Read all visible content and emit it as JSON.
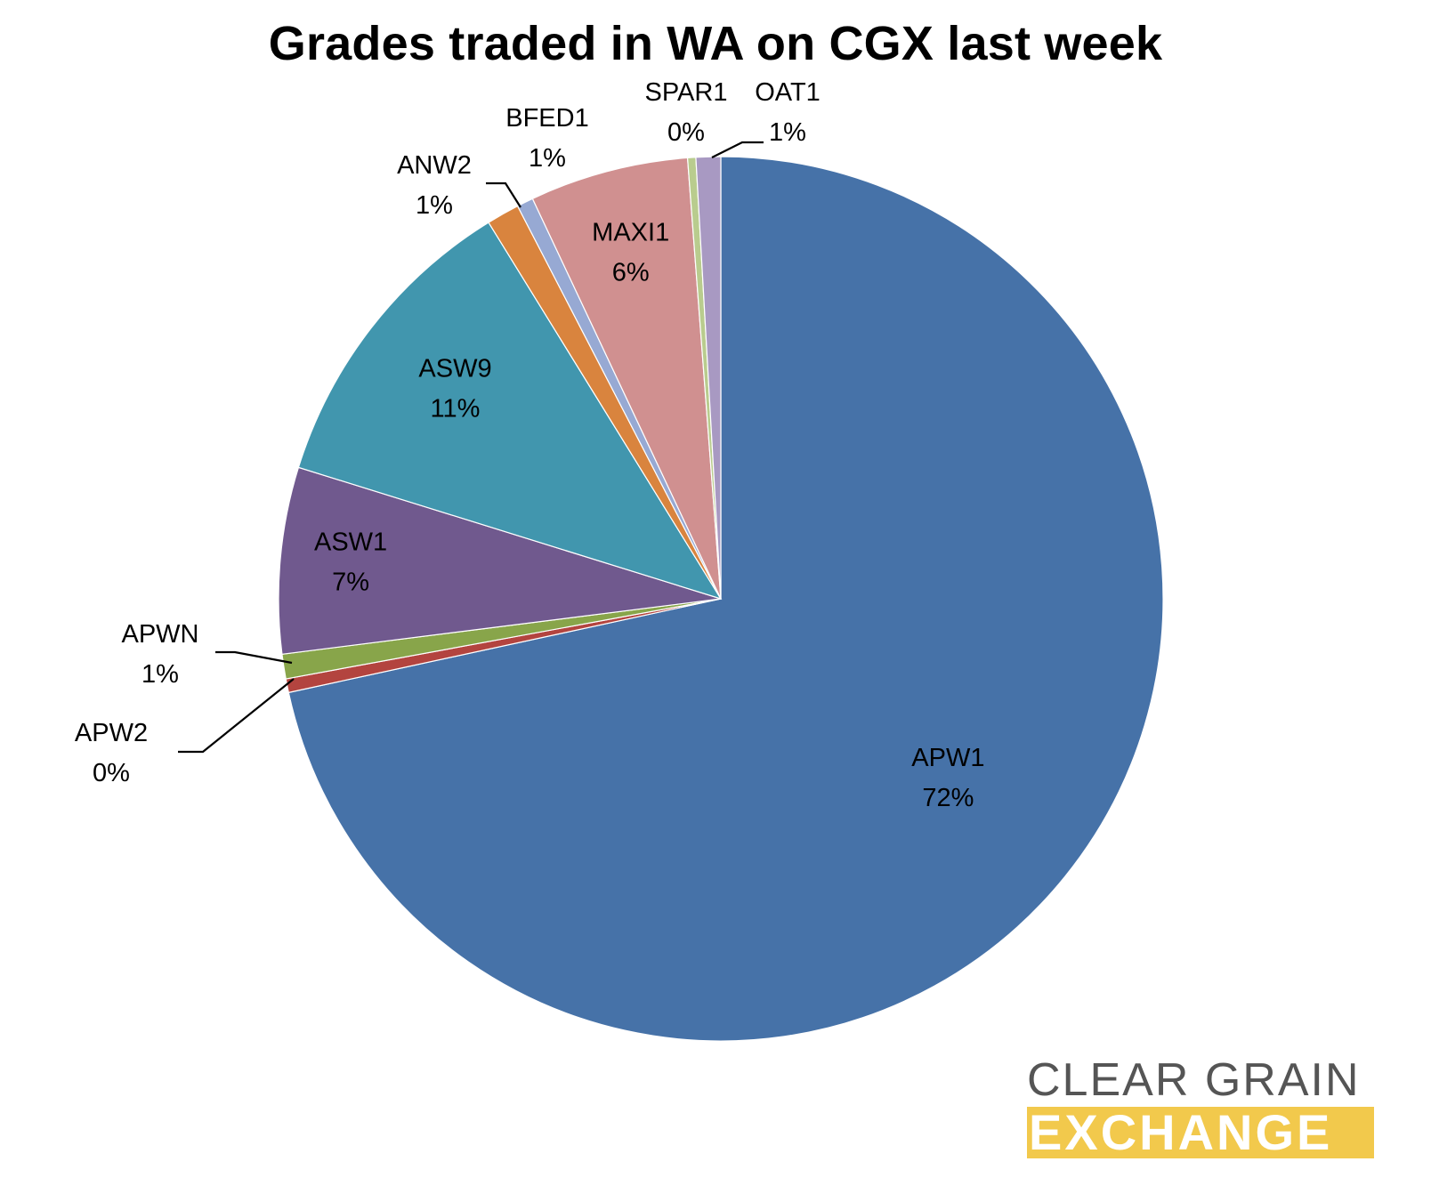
{
  "chart_data": {
    "type": "pie",
    "title": "Grades traded in WA on CGX last week",
    "start_angle_deg": 0,
    "direction": "clockwise",
    "slices": [
      {
        "label": "APW1",
        "pct_label": "72%",
        "value": 71.6,
        "color": "#4672a8"
      },
      {
        "label": "APW2",
        "pct_label": "0%",
        "value": 0.5,
        "color": "#b3443f"
      },
      {
        "label": "APWN",
        "pct_label": "1%",
        "value": 0.9,
        "color": "#88a54a"
      },
      {
        "label": "ASW1",
        "pct_label": "7%",
        "value": 6.8,
        "color": "#70598e"
      },
      {
        "label": "ASW9",
        "pct_label": "11%",
        "value": 11.4,
        "color": "#4196ae"
      },
      {
        "label": "ANW2",
        "pct_label": "1%",
        "value": 1.2,
        "color": "#d9843e"
      },
      {
        "label": "BFED1",
        "pct_label": "1%",
        "value": 0.6,
        "color": "#97a9d3"
      },
      {
        "label": "MAXI1",
        "pct_label": "6%",
        "value": 5.8,
        "color": "#d09090"
      },
      {
        "label": "SPAR1",
        "pct_label": "0%",
        "value": 0.3,
        "color": "#b9cc8e"
      },
      {
        "label": "OAT1",
        "pct_label": "1%",
        "value": 0.9,
        "color": "#a899c2"
      }
    ]
  },
  "logo": {
    "line1": "CLEAR GRAIN",
    "line2": "EXCHANGE"
  }
}
